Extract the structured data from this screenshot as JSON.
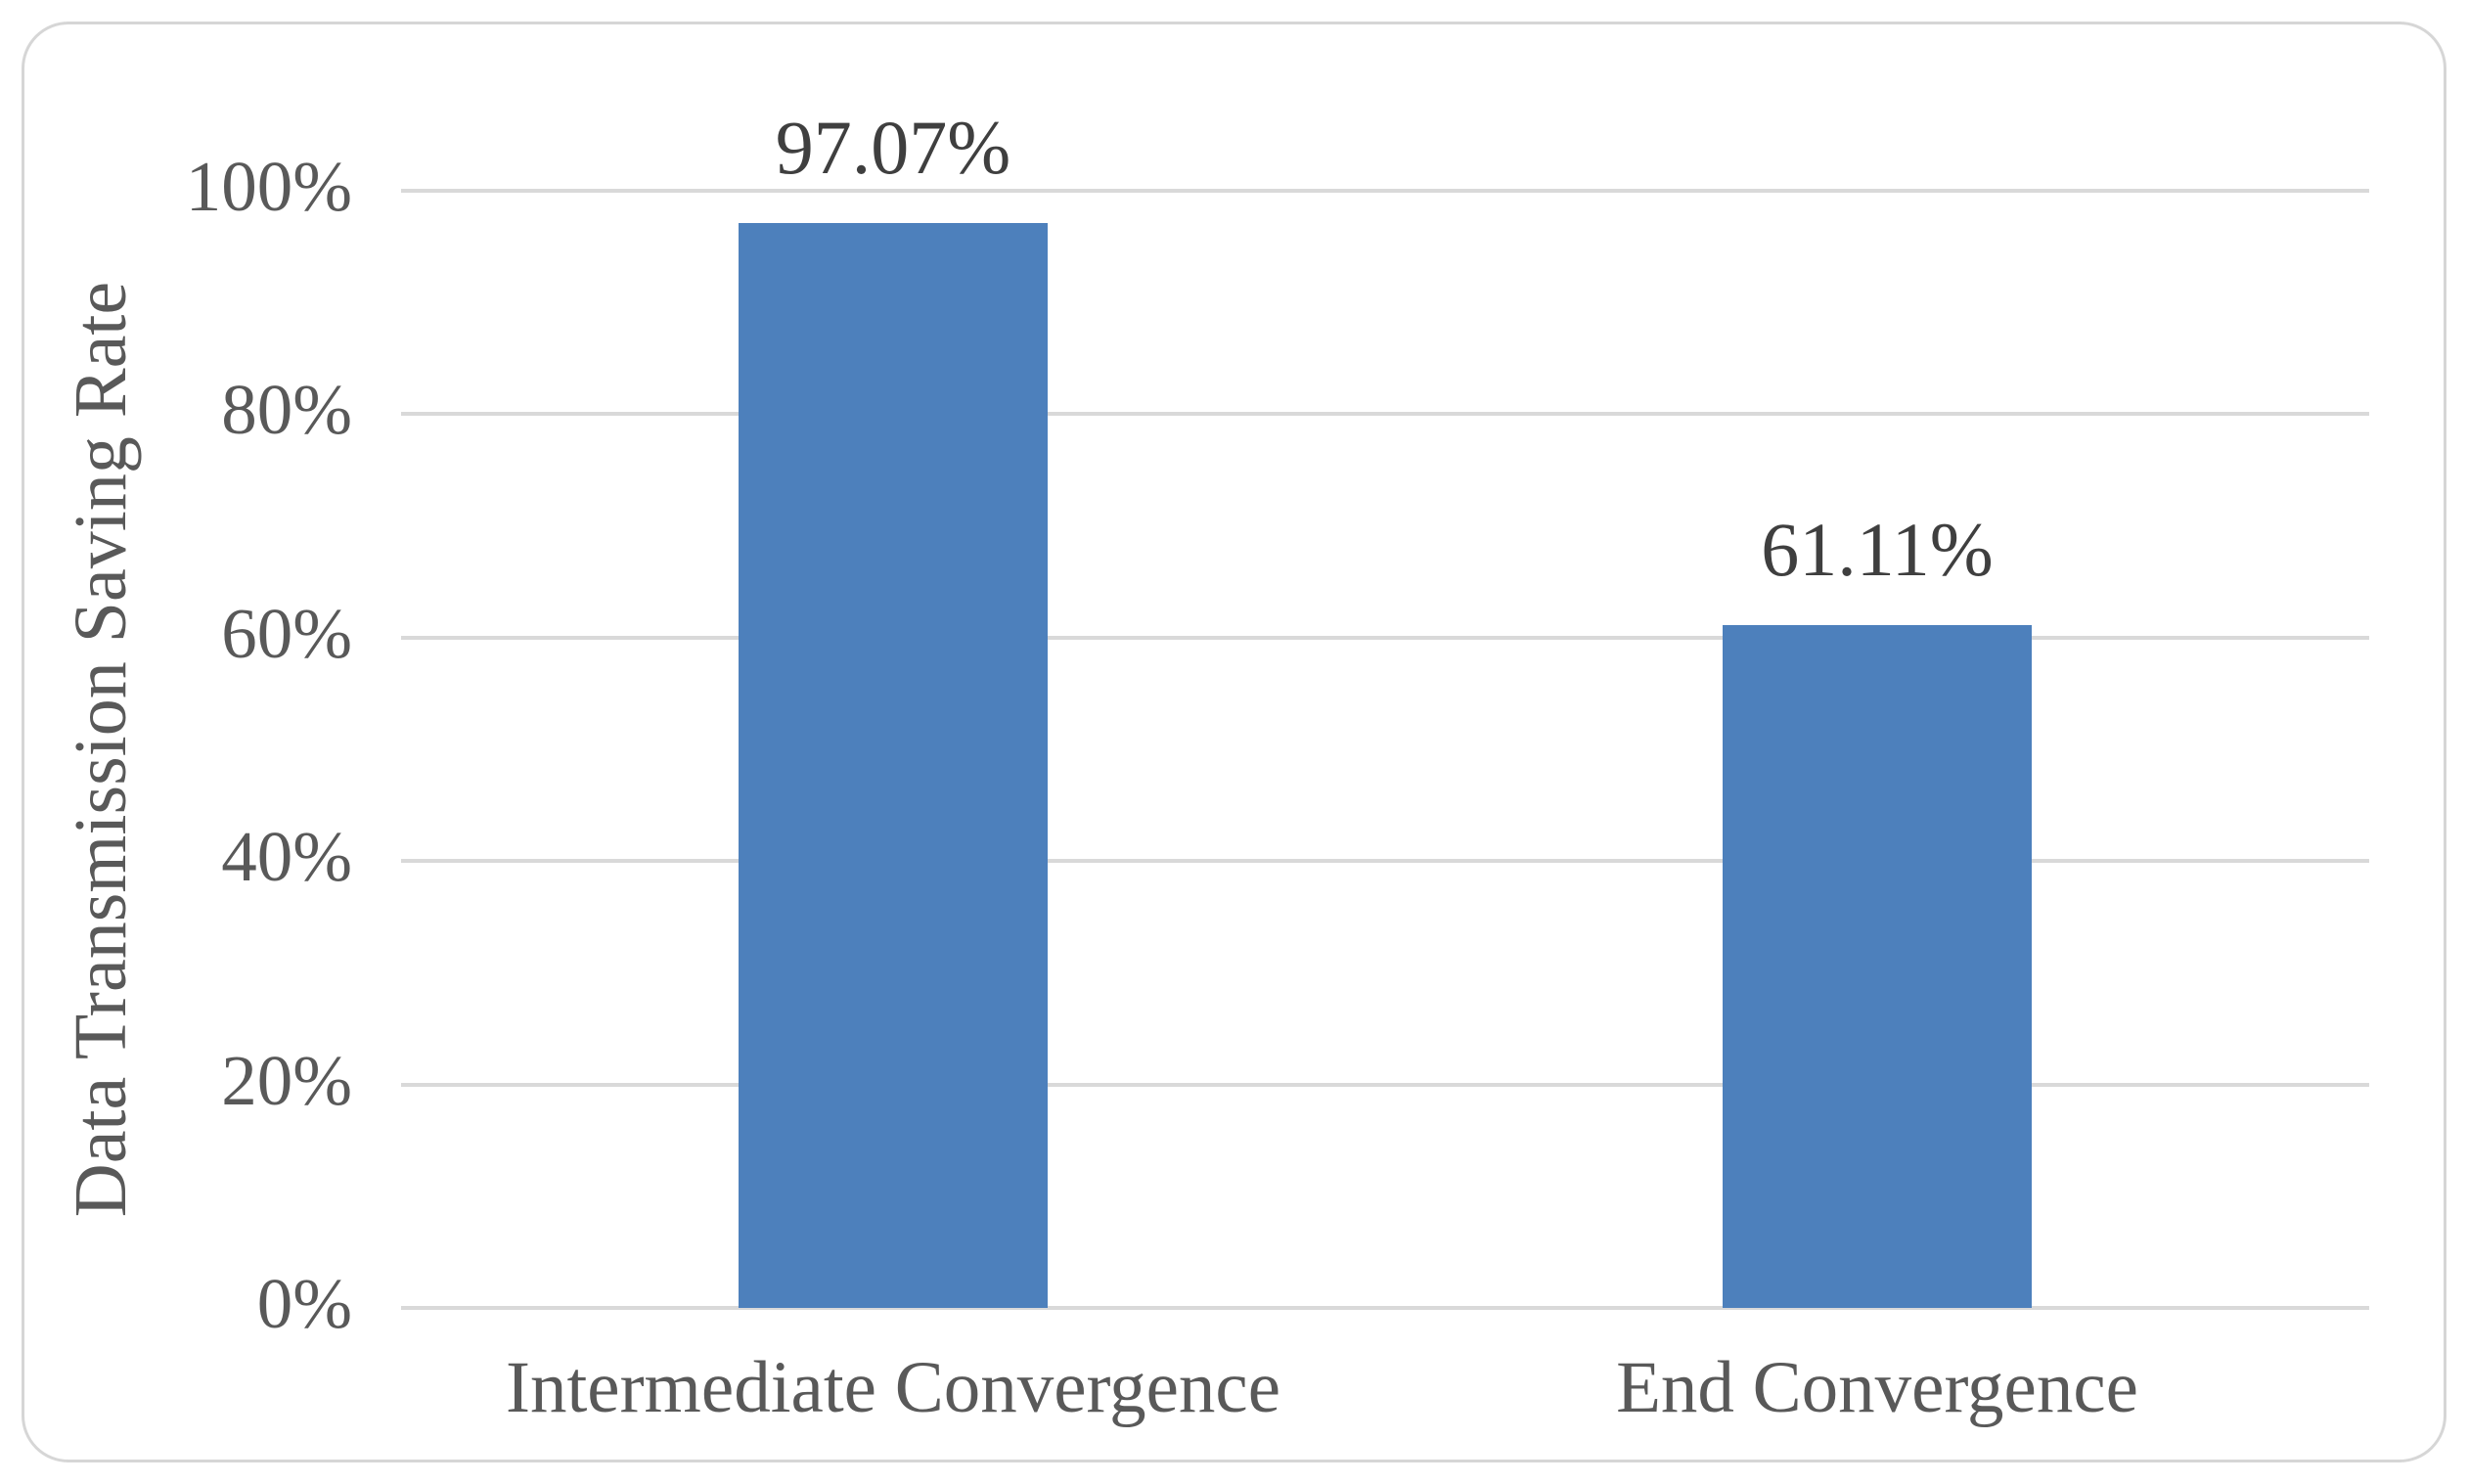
{
  "figure": {
    "background": "#ffffff",
    "border_color": "#d6d6d6"
  },
  "chart_data": {
    "type": "bar",
    "title": "",
    "categories": [
      "Intermediate Convergence",
      "End Convergence"
    ],
    "values": [
      97.07,
      61.11
    ],
    "data_labels": [
      "97.07%",
      "61.11%"
    ],
    "xlabel": "",
    "ylabel": "Data Transmission Saving Rate",
    "ylim": [
      0,
      100
    ],
    "yticks": [
      {
        "value": 0,
        "label": "0%"
      },
      {
        "value": 20,
        "label": "20%"
      },
      {
        "value": 40,
        "label": "40%"
      },
      {
        "value": 60,
        "label": "60%"
      },
      {
        "value": 80,
        "label": "80%"
      },
      {
        "value": 100,
        "label": "100%"
      }
    ],
    "grid": "horizontal",
    "legend": "none",
    "bar_color": "#4d80bc",
    "gridline_color": "#d9d9d9",
    "tick_label_color": "#595959",
    "category_label_color": "#595959",
    "data_label_color": "#3f3f3f"
  }
}
